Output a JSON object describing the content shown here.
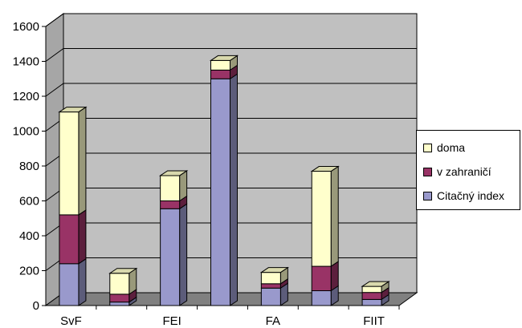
{
  "chart_data": {
    "type": "bar",
    "stacked": true,
    "three_d": true,
    "categories": [
      "SvF",
      "",
      "FEI",
      "",
      "FA",
      "",
      "FIIT"
    ],
    "series": [
      {
        "name": "Citačný index",
        "color": "#9999cc",
        "values": [
          240,
          20,
          555,
          1300,
          100,
          85,
          35
        ]
      },
      {
        "name": "v zahraničí",
        "color": "#993366",
        "values": [
          280,
          45,
          45,
          50,
          25,
          140,
          40
        ]
      },
      {
        "name": "doma",
        "color": "#ffffcc",
        "values": [
          590,
          120,
          145,
          55,
          65,
          545,
          35
        ]
      }
    ],
    "y_ticks": [
      "0",
      "200",
      "400",
      "600",
      "800",
      "1000",
      "1200",
      "1400",
      "1600"
    ],
    "ylim": [
      0,
      1600
    ],
    "grid": true,
    "legend_position": "right",
    "legend_order": [
      "doma",
      "v zahraničí",
      "Citačný index"
    ],
    "background": "#c0c0c0"
  }
}
